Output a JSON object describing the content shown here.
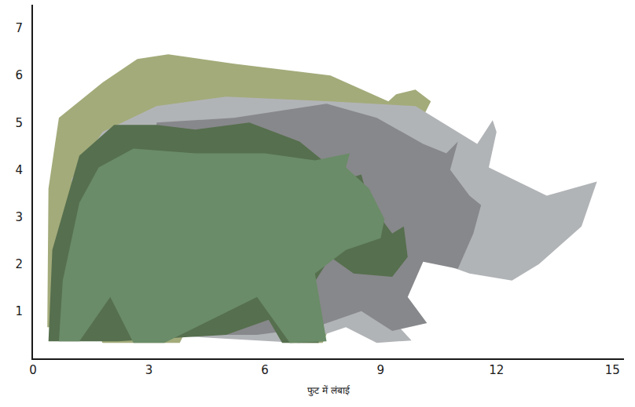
{
  "chart_data": {
    "type": "area",
    "xlabel": "फुट में लंबाई",
    "xlim": [
      0,
      15.3
    ],
    "xticks": [
      0,
      3,
      6,
      9,
      12,
      15
    ],
    "ylim": [
      0,
      7.5
    ],
    "yticks": [
      1,
      2,
      3,
      4,
      5,
      6,
      7
    ],
    "grid": false,
    "series": [
      {
        "color": "#a3ab7a",
        "x": [
          0.37,
          0.4,
          0.67,
          1.8,
          2.7,
          3.5,
          5.2,
          7.7,
          9.2,
          9.4,
          9.9,
          10.3,
          9.9,
          7.5,
          6.65,
          5.2,
          4.0,
          3.8,
          1.8,
          1.6,
          0.37
        ],
        "values": [
          0.66,
          3.6,
          5.1,
          5.85,
          6.35,
          6.45,
          6.25,
          6.0,
          5.45,
          5.6,
          5.7,
          5.45,
          4.8,
          0.33,
          0.33,
          0.66,
          0.66,
          0.33,
          0.33,
          0.66,
          0.66
        ]
      },
      {
        "color": "#b1b4b7",
        "x": [
          1.1,
          1.0,
          1.8,
          3.2,
          5.0,
          7.7,
          9.9,
          10.7,
          11.5,
          11.9,
          12.0,
          11.8,
          13.3,
          14.6,
          14.2,
          13.1,
          12.4,
          11.3,
          10.1,
          9.3,
          9.1,
          9.8,
          8.9,
          8.1,
          6.9,
          3.2,
          1.8,
          1.1
        ],
        "values": [
          0.66,
          3.8,
          4.8,
          5.35,
          5.55,
          5.45,
          5.35,
          4.95,
          4.55,
          5.05,
          4.8,
          4.05,
          3.45,
          3.75,
          2.8,
          2.0,
          1.65,
          1.8,
          2.15,
          1.3,
          1.0,
          0.38,
          0.33,
          0.66,
          0.33,
          0.5,
          0.5,
          0.66
        ]
      },
      {
        "color": "#87888b",
        "x": [
          3.1,
          3.0,
          3.2,
          5.2,
          7.6,
          8.9,
          10.1,
          10.7,
          11.0,
          10.8,
          11.3,
          11.6,
          11.4,
          11.0,
          10.1,
          9.7,
          10.2,
          9.3,
          8.5,
          7.3,
          5.8,
          4.4,
          3.8,
          3.1
        ],
        "values": [
          0.5,
          2.0,
          5.0,
          5.1,
          5.4,
          5.1,
          4.55,
          4.35,
          4.6,
          4.0,
          3.45,
          3.25,
          2.65,
          1.9,
          2.05,
          1.3,
          0.75,
          0.58,
          1.0,
          0.66,
          0.5,
          0.5,
          0.5,
          0.5
        ]
      },
      {
        "color": "#566f4e",
        "x": [
          0.4,
          0.5,
          1.2,
          2.1,
          3.2,
          4.2,
          5.6,
          6.9,
          8.1,
          8.5,
          8.7,
          9.3,
          9.6,
          9.7,
          9.3,
          8.3,
          7.7,
          7.2,
          7.4,
          6.45,
          6.1,
          5.0,
          2.2,
          1.2,
          0.4
        ],
        "values": [
          0.36,
          2.3,
          4.3,
          4.95,
          4.95,
          4.85,
          5.0,
          4.6,
          3.8,
          3.9,
          3.3,
          2.65,
          2.8,
          2.15,
          1.73,
          1.8,
          2.15,
          1.5,
          0.33,
          0.33,
          0.82,
          0.5,
          0.36,
          0.36,
          0.36
        ]
      },
      {
        "color": "#6a8c68",
        "x": [
          0.67,
          0.77,
          1.2,
          1.7,
          2.6,
          4.2,
          6.0,
          7.3,
          7.9,
          8.2,
          8.1,
          8.7,
          9.1,
          9.0,
          8.1,
          7.3,
          7.6,
          6.65,
          5.8,
          3.4,
          2.6,
          2.0,
          1.2,
          0.67
        ],
        "values": [
          0.36,
          1.65,
          3.3,
          4.05,
          4.45,
          4.35,
          4.35,
          4.2,
          4.3,
          4.35,
          4.05,
          3.6,
          2.95,
          2.55,
          2.3,
          1.8,
          0.36,
          0.33,
          1.3,
          0.33,
          0.33,
          1.3,
          0.36,
          0.36
        ]
      }
    ]
  }
}
